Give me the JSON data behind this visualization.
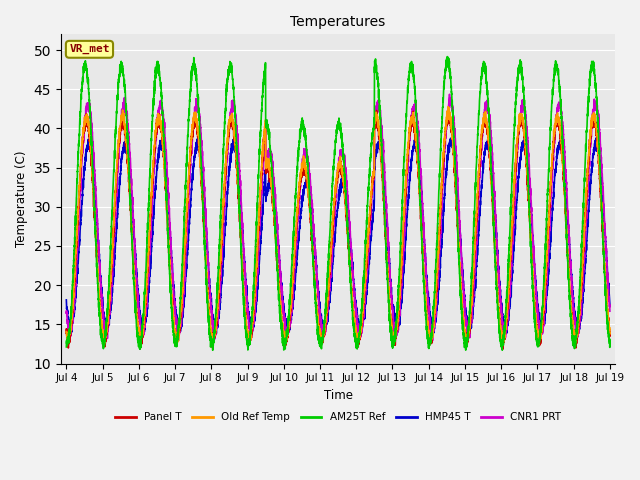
{
  "title": "Temperatures",
  "xlabel": "Time",
  "ylabel": "Temperature (C)",
  "ylim": [
    10,
    52
  ],
  "yticks": [
    10,
    15,
    20,
    25,
    30,
    35,
    40,
    45,
    50
  ],
  "xlim_days": [
    3.85,
    19.15
  ],
  "xtick_days": [
    4,
    5,
    6,
    7,
    8,
    9,
    10,
    11,
    12,
    13,
    14,
    15,
    16,
    17,
    18,
    19
  ],
  "xtick_labels": [
    "Jul 4",
    "Jul 5",
    "Jul 6",
    "Jul 7",
    "Jul 8",
    "Jul 9",
    "Jul 10",
    "Jul 11",
    "Jul 12",
    "Jul 13",
    "Jul 14",
    "Jul 15",
    "Jul 16",
    "Jul 17",
    "Jul 18",
    "Jul 19"
  ],
  "series": {
    "Panel T": {
      "color": "#cc0000",
      "lw": 1.2
    },
    "Old Ref Temp": {
      "color": "#ff9900",
      "lw": 1.2
    },
    "AM25T Ref": {
      "color": "#00cc00",
      "lw": 1.2
    },
    "HMP45 T": {
      "color": "#0000cc",
      "lw": 1.2
    },
    "CNR1 PRT": {
      "color": "#cc00cc",
      "lw": 1.2
    }
  },
  "background_color": "#e8e8e8",
  "grid_color": "#ffffff",
  "fig_background": "#f2f2f2",
  "annotation_text": "VR_met",
  "annotation_bg": "#ffff99",
  "annotation_border": "#888800",
  "annotation_text_color": "#880000",
  "figsize": [
    6.4,
    4.8
  ],
  "dpi": 100
}
